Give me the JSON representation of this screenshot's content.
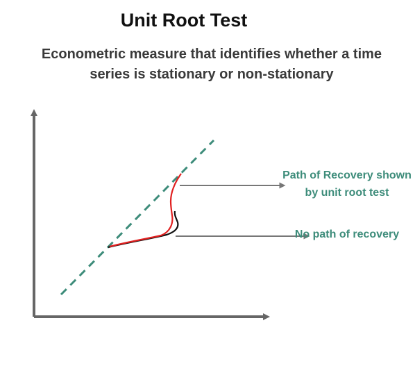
{
  "title": "Unit Root Test",
  "subtitle": "Econometric measure that identifies whether a time series is stationary or non-stationary",
  "annotations": {
    "recovery": "Path of Recovery shown by unit root test",
    "no_recovery": "No path of recovery"
  },
  "colors": {
    "trend_line": "#3d8c7a",
    "recovery_path": "#e02020",
    "no_recovery_path": "#111111",
    "arrows": "#777777",
    "axes": "#666666",
    "annotation_text": "#3d8c7a"
  }
}
